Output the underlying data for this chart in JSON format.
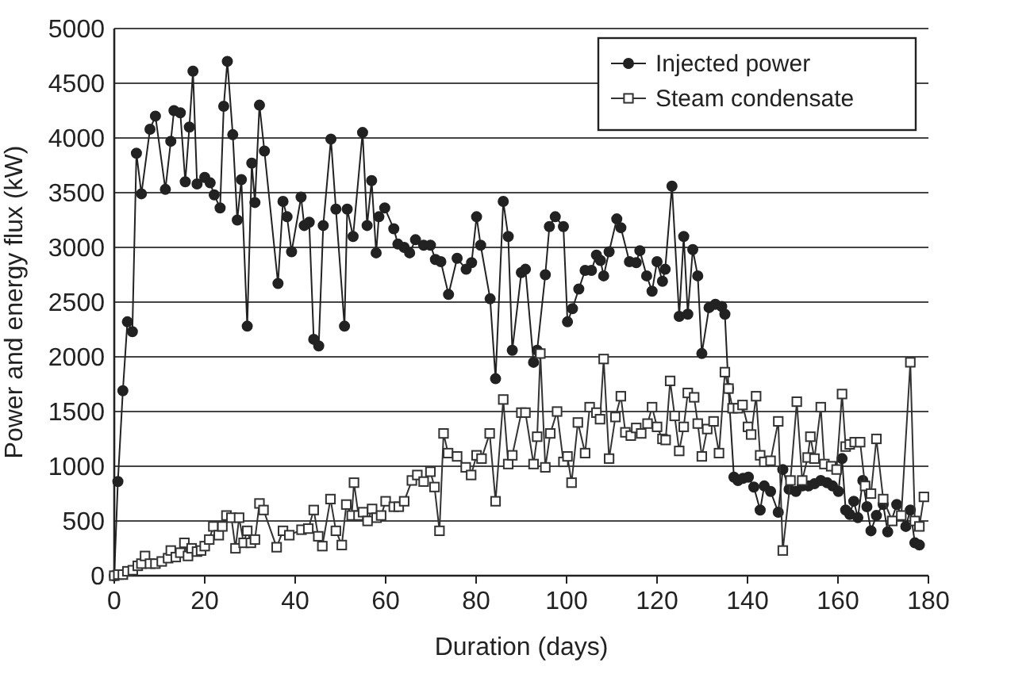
{
  "chart_data": {
    "type": "line",
    "xlabel": "Duration (days)",
    "ylabel": "Power and energy flux (kW)",
    "xlim": [
      0,
      180
    ],
    "xticks": [
      0,
      20,
      40,
      60,
      80,
      100,
      120,
      140,
      160,
      180
    ],
    "ylim": [
      0,
      5000
    ],
    "yticks": [
      0,
      500,
      1000,
      1500,
      2000,
      2500,
      3000,
      3500,
      4000,
      4500,
      5000
    ],
    "grid": "y",
    "legend": "top right",
    "line_style": "solid",
    "series": [
      {
        "name": "Injected power",
        "color": "#222222",
        "marker": "circle",
        "x": [
          0,
          0.8,
          1.9,
          2.9,
          4,
          4.9,
          6,
          7.9,
          9.1,
          11.3,
          12.5,
          13.2,
          14.6,
          15.7,
          16.6,
          17.4,
          18.3,
          20,
          21.2,
          22.1,
          23.4,
          24.2,
          25,
          26.2,
          27.2,
          28.1,
          29.4,
          30.4,
          31.1,
          32.1,
          33.2,
          36.2,
          37.3,
          38.2,
          39.2,
          41.3,
          42,
          43.1,
          44.1,
          45.2,
          46.2,
          47.9,
          49,
          50.9,
          51.5,
          52.8,
          54.9,
          55.9,
          56.9,
          57.9,
          58.5,
          59.8,
          61.8,
          62.7,
          64.1,
          65.3,
          66.6,
          68.4,
          69.9,
          71,
          72.2,
          73.9,
          75.8,
          77.8,
          79,
          80.1,
          81,
          83.1,
          84.3,
          86,
          87.1,
          88,
          90,
          90.9,
          92.7,
          93.5,
          95.3,
          96.2,
          97.5,
          99.3,
          100.2,
          101.3,
          102.7,
          104.1,
          105.5,
          106.6,
          107.5,
          108.2,
          109.4,
          111.1,
          112,
          113.9,
          115.4,
          116.2,
          117.7,
          118.9,
          120,
          121.2,
          121.8,
          123.3,
          124.9,
          125.9,
          126.8,
          127.9,
          129,
          129.9,
          131.5,
          132.9,
          134.3,
          135,
          135.8,
          137,
          137.9,
          139,
          140.2,
          141.4,
          142.8,
          143.7,
          145.1,
          146.8,
          147.8,
          149.2,
          150.7,
          152.1,
          153.5,
          154.8,
          156.2,
          157.6,
          158.8,
          160.1,
          160.9,
          161.7,
          162.6,
          163.5,
          164.4,
          165.5,
          166.4,
          167.3,
          168.5,
          170,
          171,
          173,
          175,
          176,
          177,
          178
        ],
        "values": [
          0,
          860,
          1690,
          2320,
          2230,
          3860,
          3490,
          4080,
          4200,
          3530,
          3970,
          4250,
          4230,
          3600,
          4100,
          4610,
          3580,
          3640,
          3590,
          3480,
          3360,
          4290,
          4700,
          4030,
          3250,
          3620,
          2280,
          3770,
          3410,
          4300,
          3880,
          2670,
          3420,
          3280,
          2960,
          3460,
          3200,
          3230,
          2160,
          2100,
          3200,
          3990,
          3350,
          2280,
          3350,
          3100,
          4050,
          3200,
          3610,
          2950,
          3280,
          3360,
          3170,
          3030,
          3000,
          2950,
          3070,
          3020,
          3020,
          2890,
          2870,
          2570,
          2900,
          2800,
          2860,
          3280,
          3020,
          2530,
          1800,
          3420,
          3100,
          2060,
          2770,
          2800,
          1950,
          2060,
          2750,
          3190,
          3280,
          3190,
          2320,
          2440,
          2620,
          2790,
          2790,
          2930,
          2880,
          2740,
          2960,
          3260,
          3180,
          2870,
          2860,
          2970,
          2740,
          2600,
          2870,
          2690,
          2800,
          3560,
          2370,
          3100,
          2390,
          2980,
          2740,
          2030,
          2450,
          2480,
          2460,
          2390,
          1710,
          900,
          870,
          890,
          900,
          810,
          600,
          820,
          770,
          580,
          970,
          790,
          770,
          820,
          820,
          840,
          870,
          850,
          820,
          770,
          1070,
          600,
          560,
          680,
          530,
          870,
          630,
          410,
          550,
          650,
          400,
          650,
          450,
          600,
          300,
          280
        ]
      },
      {
        "name": "Steam condensate",
        "color": "#333333",
        "marker": "square",
        "x": [
          0,
          0.9,
          1.9,
          2.9,
          4.1,
          5.2,
          6,
          6.8,
          7.9,
          9.1,
          10.5,
          11.9,
          12.5,
          13.6,
          14.6,
          15.5,
          16.3,
          17.1,
          18.3,
          19.2,
          20,
          21,
          21.9,
          23.1,
          23.9,
          24.8,
          25.9,
          26.8,
          27.6,
          28.6,
          29.4,
          30.2,
          31.1,
          32.1,
          33,
          35.9,
          37.3,
          38.7,
          41.4,
          42.9,
          44.1,
          45.1,
          46,
          47.8,
          49,
          50.3,
          51.3,
          52.5,
          53,
          54,
          55,
          56,
          57,
          58,
          59,
          60,
          61.8,
          62.9,
          64.1,
          65.8,
          67,
          68.4,
          69.9,
          70.8,
          71.9,
          72.8,
          73.8,
          75.8,
          77.7,
          78.9,
          80.1,
          81.2,
          83,
          84.3,
          86,
          87.1,
          88,
          90,
          90.9,
          92.7,
          93.5,
          94.2,
          95.3,
          96.4,
          97.9,
          99.3,
          100.2,
          101.1,
          102.5,
          104.1,
          105.1,
          106.6,
          107.4,
          108.2,
          109.4,
          110.8,
          112,
          113,
          114.2,
          115.4,
          116.5,
          117.9,
          118.9,
          120,
          121.2,
          121.9,
          122.9,
          123.9,
          124.9,
          125.9,
          126.8,
          128.2,
          129,
          129.9,
          131.1,
          132.5,
          133.7,
          135,
          135.8,
          136.7,
          137.9,
          138.9,
          140.1,
          140.8,
          141.9,
          142.8,
          143.7,
          145.1,
          146.8,
          147.8,
          149.5,
          150.9,
          152.1,
          153.3,
          153.9,
          154.8,
          156.2,
          157,
          158.5,
          159.7,
          160.9,
          161.7,
          162.6,
          163.7,
          164.9,
          166,
          167.3,
          168.5,
          170,
          172,
          174,
          176,
          177,
          178,
          179
        ],
        "values": [
          0,
          10,
          10,
          40,
          50,
          90,
          110,
          180,
          110,
          110,
          130,
          160,
          230,
          170,
          210,
          300,
          180,
          250,
          220,
          230,
          270,
          330,
          450,
          370,
          450,
          550,
          530,
          250,
          530,
          300,
          410,
          300,
          330,
          660,
          600,
          260,
          410,
          370,
          420,
          430,
          600,
          360,
          270,
          700,
          410,
          280,
          650,
          550,
          850,
          550,
          580,
          500,
          610,
          530,
          550,
          680,
          630,
          630,
          680,
          870,
          920,
          860,
          950,
          810,
          410,
          1300,
          1120,
          1090,
          990,
          920,
          1100,
          1070,
          1300,
          680,
          1610,
          1020,
          1100,
          1490,
          1490,
          1020,
          1270,
          2030,
          990,
          1300,
          1500,
          1040,
          1090,
          850,
          1400,
          1120,
          1540,
          1490,
          1430,
          1980,
          1070,
          1450,
          1640,
          1310,
          1280,
          1350,
          1300,
          1390,
          1540,
          1360,
          1250,
          1240,
          1780,
          1460,
          1140,
          1360,
          1670,
          1630,
          1390,
          1090,
          1340,
          1410,
          1120,
          1860,
          1710,
          1530,
          1530,
          1560,
          1360,
          1290,
          1640,
          1100,
          1040,
          1050,
          1410,
          230,
          870,
          1590,
          870,
          1080,
          1270,
          1070,
          1540,
          1020,
          1000,
          970,
          1660,
          1180,
          1200,
          1220,
          1220,
          820,
          750,
          1250,
          700,
          500,
          550,
          1950,
          500,
          450,
          720
        ]
      }
    ]
  }
}
